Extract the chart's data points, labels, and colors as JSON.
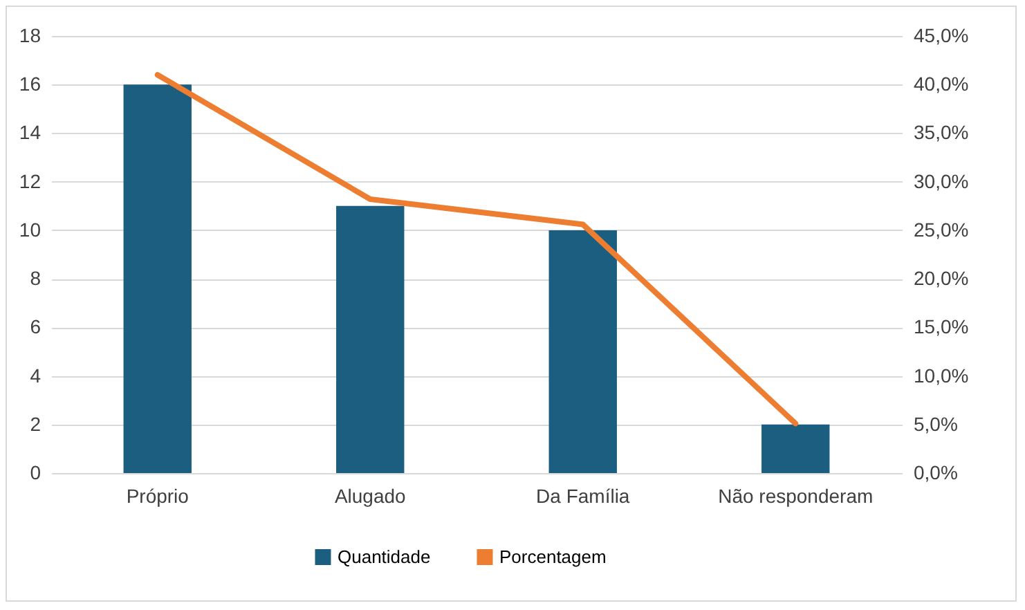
{
  "chart_data": {
    "type": "bar",
    "categories": [
      "Próprio",
      "Alugado",
      "Da Família",
      "Não responderam"
    ],
    "series": [
      {
        "name": "Quantidade",
        "color": "#1b5e80",
        "values": [
          16,
          11,
          10,
          2
        ]
      },
      {
        "name": "Porcentagem",
        "type": "line",
        "axis": "y2",
        "color": "#ed7d31",
        "values": [
          41.0,
          28.2,
          25.6,
          5.1
        ]
      }
    ],
    "ylim": [
      0,
      18
    ],
    "yticks": [
      0,
      2,
      4,
      6,
      8,
      10,
      12,
      14,
      16,
      18
    ],
    "y2lim": [
      0,
      45
    ],
    "y2ticks": [
      {
        "value": 0,
        "label": "0,0%"
      },
      {
        "value": 5,
        "label": "5,0%"
      },
      {
        "value": 10,
        "label": "10,0%"
      },
      {
        "value": 15,
        "label": "15,0%"
      },
      {
        "value": 20,
        "label": "20,0%"
      },
      {
        "value": 25,
        "label": "25,0%"
      },
      {
        "value": 30,
        "label": "30,0%"
      },
      {
        "value": 35,
        "label": "35,0%"
      },
      {
        "value": 40,
        "label": "40,0%"
      },
      {
        "value": 45,
        "label": "45,0%"
      }
    ],
    "grid": "y",
    "legend": "bottom",
    "marker": "none",
    "line_style": "solid"
  }
}
